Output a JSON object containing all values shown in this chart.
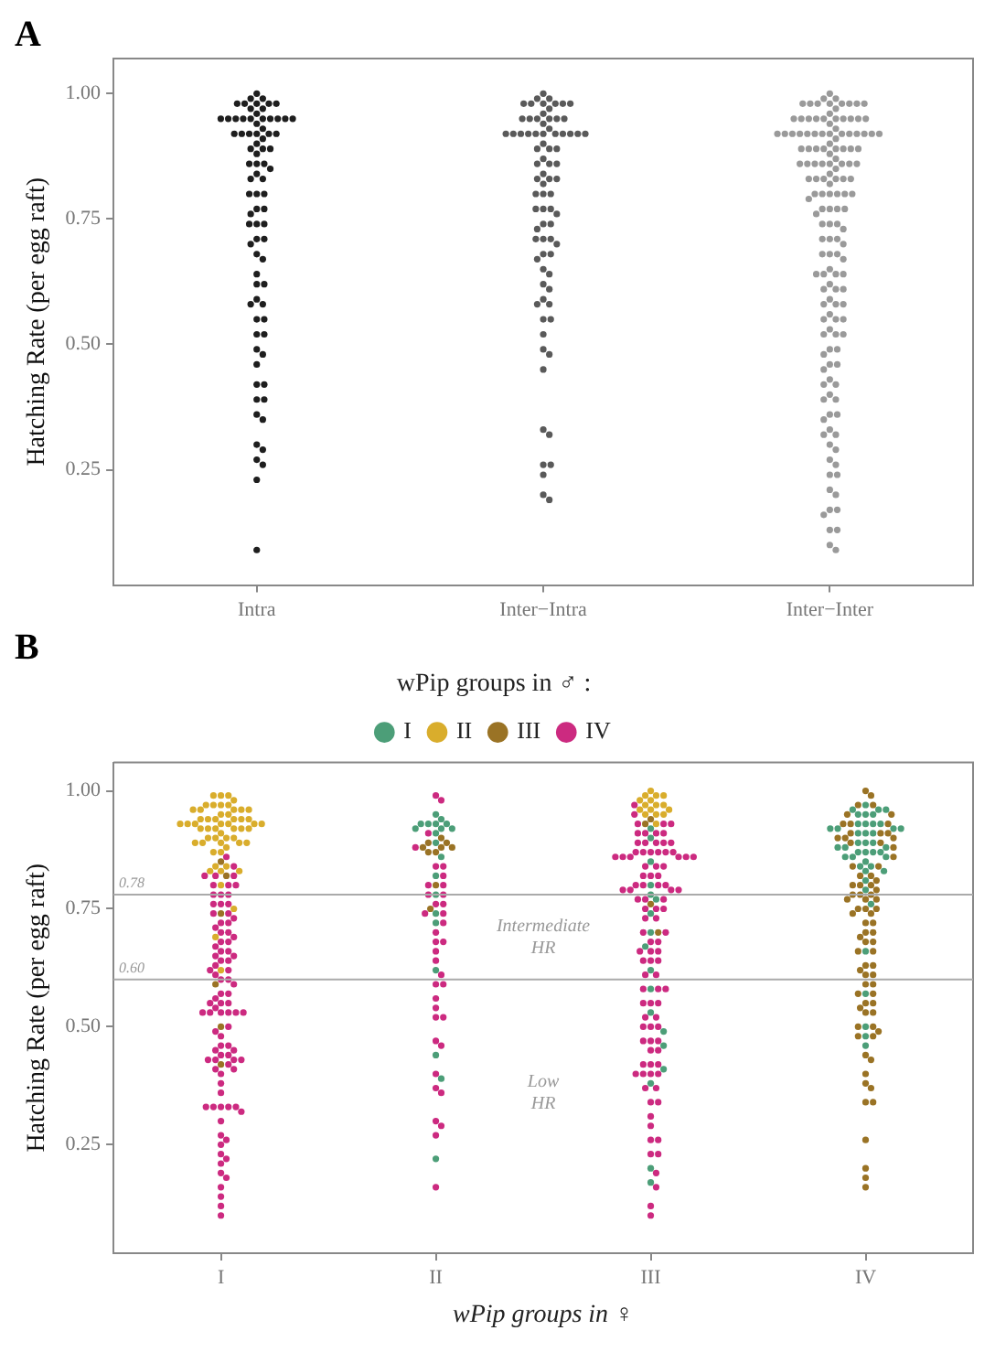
{
  "chart_data": [
    {
      "type": "scatter",
      "title": "A",
      "ylabel": "Hatching Rate (per egg raft)",
      "categories": [
        "Intra",
        "Inter−Intra",
        "Inter−Inter"
      ],
      "ylim": [
        0.02,
        1.07
      ],
      "yticks": [
        {
          "value": 0.25,
          "label": "0.25"
        },
        {
          "value": 0.5,
          "label": "0.50"
        },
        {
          "value": 0.75,
          "label": "0.75"
        },
        {
          "value": 1,
          "label": "1.00"
        }
      ],
      "marker": "circle",
      "series": [
        {
          "color": "#1e1e1e",
          "x": [
            "Intra",
            "Intra",
            "Intra",
            "Intra",
            "Intra",
            "Intra",
            "Intra",
            "Intra",
            "Intra",
            "Intra",
            "Intra",
            "Intra",
            "Intra",
            "Intra",
            "Intra",
            "Intra",
            "Intra",
            "Intra",
            "Intra",
            "Intra",
            "Intra",
            "Intra",
            "Intra",
            "Intra",
            "Intra",
            "Intra",
            "Intra",
            "Intra",
            "Intra",
            "Intra",
            "Intra",
            "Intra",
            "Intra",
            "Intra",
            "Intra",
            "Intra",
            "Intra",
            "Intra",
            "Intra",
            "Intra",
            "Intra",
            "Intra",
            "Intra",
            "Intra",
            "Intra",
            "Intra",
            "Intra",
            "Intra",
            "Intra",
            "Intra",
            "Intra",
            "Intra",
            "Intra",
            "Intra",
            "Intra",
            "Intra",
            "Intra",
            "Intra",
            "Intra",
            "Intra",
            "Intra",
            "Intra",
            "Intra",
            "Intra",
            "Intra",
            "Intra",
            "Intra",
            "Intra",
            "Intra",
            "Intra",
            "Intra",
            "Intra",
            "Intra",
            "Intra",
            "Intra",
            "Intra",
            "Intra",
            "Intra",
            "Intra",
            "Intra",
            "Intra"
          ],
          "values": [
            1.0,
            0.99,
            0.98,
            0.98,
            0.98,
            0.98,
            0.97,
            0.99,
            0.98,
            0.97,
            0.95,
            0.95,
            0.95,
            0.95,
            0.95,
            0.95,
            0.96,
            0.95,
            0.94,
            0.95,
            0.95,
            0.95,
            0.92,
            0.92,
            0.92,
            0.92,
            0.93,
            0.92,
            0.92,
            0.91,
            0.89,
            0.89,
            0.9,
            0.89,
            0.88,
            0.86,
            0.86,
            0.85,
            0.86,
            0.83,
            0.83,
            0.84,
            0.8,
            0.8,
            0.8,
            0.77,
            0.77,
            0.76,
            0.74,
            0.74,
            0.74,
            0.71,
            0.71,
            0.7,
            0.68,
            0.67,
            0.64,
            0.62,
            0.62,
            0.58,
            0.58,
            0.59,
            0.55,
            0.55,
            0.52,
            0.52,
            0.48,
            0.49,
            0.46,
            0.42,
            0.42,
            0.39,
            0.39,
            0.36,
            0.35,
            0.3,
            0.29,
            0.27,
            0.26,
            0.23,
            0.09
          ]
        },
        {
          "color": "#5a5a5a",
          "x": [
            "Inter−Intra",
            "Inter−Intra",
            "Inter−Intra",
            "Inter−Intra",
            "Inter−Intra",
            "Inter−Intra",
            "Inter−Intra",
            "Inter−Intra",
            "Inter−Intra",
            "Inter−Intra",
            "Inter−Intra",
            "Inter−Intra",
            "Inter−Intra",
            "Inter−Intra",
            "Inter−Intra",
            "Inter−Intra",
            "Inter−Intra",
            "Inter−Intra",
            "Inter−Intra",
            "Inter−Intra",
            "Inter−Intra",
            "Inter−Intra",
            "Inter−Intra",
            "Inter−Intra",
            "Inter−Intra",
            "Inter−Intra",
            "Inter−Intra",
            "Inter−Intra",
            "Inter−Intra",
            "Inter−Intra",
            "Inter−Intra",
            "Inter−Intra",
            "Inter−Intra",
            "Inter−Intra",
            "Inter−Intra",
            "Inter−Intra",
            "Inter−Intra",
            "Inter−Intra",
            "Inter−Intra",
            "Inter−Intra",
            "Inter−Intra",
            "Inter−Intra",
            "Inter−Intra",
            "Inter−Intra",
            "Inter−Intra",
            "Inter−Intra",
            "Inter−Intra",
            "Inter−Intra",
            "Inter−Intra",
            "Inter−Intra",
            "Inter−Intra",
            "Inter−Intra",
            "Inter−Intra",
            "Inter−Intra",
            "Inter−Intra",
            "Inter−Intra",
            "Inter−Intra",
            "Inter−Intra",
            "Inter−Intra",
            "Inter−Intra",
            "Inter−Intra",
            "Inter−Intra",
            "Inter−Intra",
            "Inter−Intra",
            "Inter−Intra",
            "Inter−Intra",
            "Inter−Intra",
            "Inter−Intra",
            "Inter−Intra",
            "Inter−Intra",
            "Inter−Intra",
            "Inter−Intra",
            "Inter−Intra",
            "Inter−Intra",
            "Inter−Intra",
            "Inter−Intra",
            "Inter−Intra",
            "Inter−Intra",
            "Inter−Intra",
            "Inter−Intra"
          ],
          "values": [
            1.0,
            0.99,
            0.98,
            0.98,
            0.98,
            0.98,
            0.98,
            0.99,
            0.98,
            0.97,
            0.95,
            0.95,
            0.95,
            0.95,
            0.96,
            0.95,
            0.95,
            0.94,
            0.92,
            0.92,
            0.92,
            0.92,
            0.92,
            0.92,
            0.92,
            0.92,
            0.92,
            0.93,
            0.92,
            0.92,
            0.89,
            0.89,
            0.89,
            0.9,
            0.86,
            0.86,
            0.86,
            0.87,
            0.83,
            0.83,
            0.83,
            0.84,
            0.82,
            0.8,
            0.8,
            0.8,
            0.77,
            0.77,
            0.77,
            0.76,
            0.74,
            0.74,
            0.73,
            0.71,
            0.71,
            0.71,
            0.7,
            0.68,
            0.68,
            0.67,
            0.65,
            0.64,
            0.61,
            0.62,
            0.59,
            0.58,
            0.58,
            0.55,
            0.55,
            0.52,
            0.48,
            0.49,
            0.45,
            0.33,
            0.32,
            0.26,
            0.26,
            0.24,
            0.2,
            0.19
          ]
        },
        {
          "color": "#9a9a9a",
          "x": [
            "Inter−Inter",
            "Inter−Inter",
            "Inter−Inter",
            "Inter−Inter",
            "Inter−Inter",
            "Inter−Inter",
            "Inter−Inter",
            "Inter−Inter",
            "Inter−Inter",
            "Inter−Inter",
            "Inter−Inter",
            "Inter−Inter",
            "Inter−Inter",
            "Inter−Inter",
            "Inter−Inter",
            "Inter−Inter",
            "Inter−Inter",
            "Inter−Inter",
            "Inter−Inter",
            "Inter−Inter",
            "Inter−Inter",
            "Inter−Inter",
            "Inter−Inter",
            "Inter−Inter",
            "Inter−Inter",
            "Inter−Inter",
            "Inter−Inter",
            "Inter−Inter",
            "Inter−Inter",
            "Inter−Inter",
            "Inter−Inter",
            "Inter−Inter",
            "Inter−Inter",
            "Inter−Inter",
            "Inter−Inter",
            "Inter−Inter",
            "Inter−Inter",
            "Inter−Inter",
            "Inter−Inter",
            "Inter−Inter",
            "Inter−Inter",
            "Inter−Inter",
            "Inter−Inter",
            "Inter−Inter",
            "Inter−Inter",
            "Inter−Inter",
            "Inter−Inter",
            "Inter−Inter",
            "Inter−Inter",
            "Inter−Inter",
            "Inter−Inter",
            "Inter−Inter",
            "Inter−Inter",
            "Inter−Inter",
            "Inter−Inter",
            "Inter−Inter",
            "Inter−Inter",
            "Inter−Inter",
            "Inter−Inter",
            "Inter−Inter",
            "Inter−Inter",
            "Inter−Inter",
            "Inter−Inter",
            "Inter−Inter",
            "Inter−Inter",
            "Inter−Inter",
            "Inter−Inter",
            "Inter−Inter",
            "Inter−Inter",
            "Inter−Inter",
            "Inter−Inter",
            "Inter−Inter",
            "Inter−Inter",
            "Inter−Inter",
            "Inter−Inter",
            "Inter−Inter",
            "Inter−Inter",
            "Inter−Inter",
            "Inter−Inter",
            "Inter−Inter",
            "Inter−Inter",
            "Inter−Inter",
            "Inter−Inter",
            "Inter−Inter",
            "Inter−Inter",
            "Inter−Inter",
            "Inter−Inter",
            "Inter−Inter",
            "Inter−Inter",
            "Inter−Inter",
            "Inter−Inter",
            "Inter−Inter",
            "Inter−Inter",
            "Inter−Inter",
            "Inter−Inter",
            "Inter−Inter",
            "Inter−Inter",
            "Inter−Inter",
            "Inter−Inter",
            "Inter−Inter",
            "Inter−Inter",
            "Inter−Inter",
            "Inter−Inter",
            "Inter−Inter",
            "Inter−Inter",
            "Inter−Inter",
            "Inter−Inter",
            "Inter−Inter",
            "Inter−Inter",
            "Inter−Inter",
            "Inter−Inter",
            "Inter−Inter",
            "Inter−Inter",
            "Inter−Inter",
            "Inter−Inter",
            "Inter−Inter",
            "Inter−Inter",
            "Inter−Inter",
            "Inter−Inter",
            "Inter−Inter",
            "Inter−Inter",
            "Inter−Inter",
            "Inter−Inter",
            "Inter−Inter",
            "Inter−Inter",
            "Inter−Inter",
            "Inter−Inter",
            "Inter−Inter",
            "Inter−Inter",
            "Inter−Inter",
            "Inter−Inter",
            "Inter−Inter",
            "Inter−Inter",
            "Inter−Inter",
            "Inter−Inter",
            "Inter−Inter",
            "Inter−Inter",
            "Inter−Inter",
            "Inter−Inter",
            "Inter−Inter",
            "Inter−Inter",
            "Inter−Inter",
            "Inter−Inter",
            "Inter−Inter",
            "Inter−Inter",
            "Inter−Inter"
          ],
          "values": [
            1.0,
            0.99,
            0.98,
            0.98,
            0.98,
            0.98,
            0.98,
            0.98,
            0.99,
            0.98,
            0.98,
            0.97,
            0.95,
            0.95,
            0.95,
            0.95,
            0.95,
            0.95,
            0.95,
            0.95,
            0.95,
            0.95,
            0.96,
            0.94,
            0.92,
            0.92,
            0.92,
            0.92,
            0.92,
            0.92,
            0.92,
            0.92,
            0.92,
            0.92,
            0.92,
            0.92,
            0.93,
            0.91,
            0.92,
            0.92,
            0.89,
            0.89,
            0.89,
            0.89,
            0.89,
            0.89,
            0.89,
            0.9,
            0.88,
            0.89,
            0.86,
            0.86,
            0.86,
            0.86,
            0.86,
            0.86,
            0.86,
            0.87,
            0.85,
            0.86,
            0.83,
            0.83,
            0.83,
            0.83,
            0.83,
            0.83,
            0.84,
            0.82,
            0.8,
            0.8,
            0.8,
            0.8,
            0.8,
            0.8,
            0.79,
            0.77,
            0.77,
            0.77,
            0.77,
            0.76,
            0.74,
            0.74,
            0.74,
            0.73,
            0.71,
            0.71,
            0.71,
            0.7,
            0.68,
            0.68,
            0.68,
            0.67,
            0.64,
            0.64,
            0.64,
            0.65,
            0.64,
            0.61,
            0.61,
            0.61,
            0.62,
            0.58,
            0.58,
            0.58,
            0.59,
            0.55,
            0.55,
            0.55,
            0.56,
            0.52,
            0.52,
            0.52,
            0.53,
            0.49,
            0.49,
            0.48,
            0.46,
            0.46,
            0.45,
            0.43,
            0.42,
            0.42,
            0.39,
            0.39,
            0.4,
            0.36,
            0.36,
            0.35,
            0.32,
            0.33,
            0.32,
            0.3,
            0.29,
            0.27,
            0.26,
            0.24,
            0.24,
            0.21,
            0.2,
            0.17,
            0.17,
            0.16,
            0.13,
            0.13,
            0.1,
            0.09
          ]
        }
      ]
    },
    {
      "type": "scatter",
      "title": "B",
      "ylabel": "Hatching Rate (per egg raft)",
      "xlabel": "wPip groups in ♀",
      "legend_title": "wPip groups in ♂ :",
      "legend": "top",
      "categories": [
        "I",
        "II",
        "III",
        "IV"
      ],
      "ylim": [
        0.02,
        1.06
      ],
      "yticks": [
        {
          "value": 0.25,
          "label": "0.25"
        },
        {
          "value": 0.5,
          "label": "0.50"
        },
        {
          "value": 0.75,
          "label": "0.75"
        },
        {
          "value": 1,
          "label": "1.00"
        }
      ],
      "marker": "circle",
      "ref_lines": [
        {
          "axis": "y",
          "value": 0.78,
          "label": "0.78",
          "color": "#aaaaaa"
        },
        {
          "axis": "y",
          "value": 0.6,
          "label": "0.60",
          "color": "#aaaaaa"
        }
      ],
      "annotations": [
        "Intermediate HR",
        "Low HR"
      ],
      "series": [
        {
          "name": "I",
          "color": "#4c9e78",
          "x": [
            "II",
            "II",
            "II",
            "II",
            "II",
            "II",
            "II",
            "II",
            "II",
            "II",
            "II",
            "II",
            "II",
            "II",
            "II",
            "II",
            "II",
            "II",
            "II",
            "II",
            "III",
            "III",
            "III",
            "III",
            "III",
            "III",
            "III",
            "III",
            "III",
            "III",
            "III",
            "III",
            "III",
            "III",
            "III",
            "III",
            "III",
            "III",
            "IV",
            "IV",
            "IV",
            "IV",
            "IV",
            "IV",
            "IV",
            "IV",
            "IV",
            "IV",
            "IV",
            "IV",
            "IV",
            "IV",
            "IV",
            "IV",
            "IV",
            "IV",
            "IV",
            "IV",
            "IV",
            "IV",
            "IV",
            "IV",
            "IV",
            "IV",
            "IV",
            "IV",
            "IV",
            "IV",
            "IV",
            "IV",
            "IV",
            "IV",
            "IV",
            "IV",
            "IV",
            "IV",
            "IV",
            "IV",
            "IV",
            "IV",
            "IV",
            "IV"
          ],
          "values": [
            0.95,
            0.94,
            0.93,
            0.93,
            0.93,
            0.93,
            0.92,
            0.92,
            0.91,
            0.89,
            0.86,
            0.82,
            0.78,
            0.74,
            0.72,
            0.62,
            0.44,
            0.39,
            0.22,
            0.92,
            0.92,
            0.9,
            0.85,
            0.8,
            0.78,
            0.77,
            0.74,
            0.7,
            0.67,
            0.62,
            0.58,
            0.53,
            0.49,
            0.46,
            0.41,
            0.38,
            0.2,
            0.17,
            0.97,
            0.96,
            0.96,
            0.96,
            0.95,
            0.95,
            0.95,
            0.93,
            0.93,
            0.93,
            0.93,
            0.92,
            0.92,
            0.92,
            0.92,
            0.91,
            0.91,
            0.91,
            0.89,
            0.89,
            0.89,
            0.88,
            0.88,
            0.88,
            0.87,
            0.87,
            0.87,
            0.87,
            0.86,
            0.86,
            0.86,
            0.85,
            0.84,
            0.84,
            0.83,
            0.83,
            0.81,
            0.79,
            0.76,
            0.66,
            0.57,
            0.5,
            0.48,
            0.46
          ]
        },
        {
          "name": "II",
          "color": "#d9ad2c",
          "x": [
            "I",
            "I",
            "I",
            "I",
            "I",
            "I",
            "I",
            "I",
            "I",
            "I",
            "I",
            "I",
            "I",
            "I",
            "I",
            "I",
            "I",
            "I",
            "I",
            "I",
            "I",
            "I",
            "I",
            "I",
            "I",
            "I",
            "I",
            "I",
            "I",
            "I",
            "I",
            "I",
            "I",
            "I",
            "I",
            "I",
            "I",
            "I",
            "I",
            "I",
            "I",
            "I",
            "I",
            "I",
            "I",
            "I",
            "I",
            "I",
            "I",
            "I",
            "I",
            "I",
            "I",
            "I",
            "I",
            "I",
            "III",
            "III",
            "III",
            "III",
            "III",
            "III",
            "III",
            "III",
            "III",
            "III",
            "III",
            "III",
            "III",
            "III",
            "III",
            "III"
          ],
          "values": [
            0.99,
            0.99,
            0.98,
            0.99,
            0.97,
            0.97,
            0.97,
            0.96,
            0.97,
            0.96,
            0.96,
            0.96,
            0.96,
            0.95,
            0.95,
            0.94,
            0.94,
            0.94,
            0.94,
            0.94,
            0.94,
            0.93,
            0.93,
            0.93,
            0.93,
            0.93,
            0.93,
            0.93,
            0.92,
            0.92,
            0.92,
            0.92,
            0.92,
            0.91,
            0.92,
            0.9,
            0.9,
            0.9,
            0.9,
            0.89,
            0.89,
            0.89,
            0.89,
            0.89,
            0.88,
            0.87,
            0.87,
            0.84,
            0.84,
            0.83,
            0.83,
            0.83,
            0.8,
            0.75,
            0.69,
            0.62,
            1.0,
            0.99,
            0.99,
            0.99,
            0.98,
            0.98,
            0.97,
            0.97,
            0.97,
            0.96,
            0.96,
            0.96,
            0.95,
            0.95,
            0.95,
            0.93
          ]
        },
        {
          "name": "III",
          "color": "#9a7325",
          "x": [
            "I",
            "I",
            "I",
            "I",
            "I",
            "I",
            "II",
            "II",
            "II",
            "II",
            "II",
            "II",
            "II",
            "II",
            "II",
            "II",
            "III",
            "III",
            "III",
            "III",
            "IV",
            "IV",
            "IV",
            "IV",
            "IV",
            "IV",
            "IV",
            "IV",
            "IV",
            "IV",
            "IV",
            "IV",
            "IV",
            "IV",
            "IV",
            "IV",
            "IV",
            "IV",
            "IV",
            "IV",
            "IV",
            "IV",
            "IV",
            "IV",
            "IV",
            "IV",
            "IV",
            "IV",
            "IV",
            "IV",
            "IV",
            "IV",
            "IV",
            "IV",
            "IV",
            "IV",
            "IV",
            "IV",
            "IV",
            "IV",
            "IV",
            "IV",
            "IV",
            "IV",
            "IV",
            "IV",
            "IV",
            "IV",
            "IV",
            "IV",
            "IV",
            "IV",
            "IV",
            "IV",
            "IV",
            "IV",
            "IV",
            "IV",
            "IV",
            "IV",
            "IV",
            "IV",
            "IV",
            "IV",
            "IV",
            "IV",
            "IV",
            "IV",
            "IV",
            "IV",
            "IV",
            "IV",
            "IV",
            "IV",
            "IV",
            "IV",
            "IV",
            "IV"
          ],
          "values": [
            0.85,
            0.82,
            0.74,
            0.59,
            0.5,
            0.42,
            0.9,
            0.89,
            0.89,
            0.88,
            0.88,
            0.88,
            0.87,
            0.87,
            0.8,
            0.75,
            0.94,
            0.93,
            0.76,
            0.7,
            1.0,
            0.99,
            0.97,
            0.97,
            0.95,
            0.95,
            0.93,
            0.93,
            0.93,
            0.91,
            0.91,
            0.91,
            0.9,
            0.9,
            0.9,
            0.89,
            0.89,
            0.88,
            0.86,
            0.84,
            0.84,
            0.82,
            0.82,
            0.81,
            0.8,
            0.8,
            0.8,
            0.79,
            0.78,
            0.78,
            0.78,
            0.77,
            0.77,
            0.77,
            0.75,
            0.75,
            0.75,
            0.74,
            0.74,
            0.72,
            0.72,
            0.7,
            0.7,
            0.69,
            0.68,
            0.68,
            0.66,
            0.66,
            0.63,
            0.63,
            0.62,
            0.61,
            0.61,
            0.59,
            0.59,
            0.57,
            0.57,
            0.55,
            0.55,
            0.54,
            0.53,
            0.53,
            0.5,
            0.5,
            0.49,
            0.48,
            0.48,
            0.44,
            0.43,
            0.4,
            0.38,
            0.37,
            0.34,
            0.34,
            0.26,
            0.2,
            0.18,
            0.16
          ]
        },
        {
          "name": "IV",
          "color": "#cc2a80",
          "x": [
            "I",
            "I",
            "I",
            "I",
            "I",
            "I",
            "I",
            "I",
            "I",
            "I",
            "I",
            "I",
            "I",
            "I",
            "I",
            "I",
            "I",
            "I",
            "I",
            "I",
            "I",
            "I",
            "I",
            "I",
            "I",
            "I",
            "I",
            "I",
            "I",
            "I",
            "I",
            "I",
            "I",
            "I",
            "I",
            "I",
            "I",
            "I",
            "I",
            "I",
            "I",
            "I",
            "I",
            "I",
            "I",
            "I",
            "I",
            "I",
            "I",
            "I",
            "I",
            "I",
            "I",
            "I",
            "I",
            "I",
            "I",
            "I",
            "I",
            "I",
            "I",
            "I",
            "I",
            "I",
            "I",
            "I",
            "I",
            "I",
            "I",
            "I",
            "I",
            "I",
            "I",
            "I",
            "I",
            "I",
            "I",
            "I",
            "I",
            "I",
            "I",
            "I",
            "I",
            "I",
            "I",
            "I",
            "I",
            "I",
            "I",
            "I",
            "II",
            "II",
            "II",
            "II",
            "II",
            "II",
            "II",
            "II",
            "II",
            "II",
            "II",
            "II",
            "II",
            "II",
            "II",
            "II",
            "II",
            "II",
            "II",
            "II",
            "II",
            "II",
            "II",
            "II",
            "II",
            "II",
            "II",
            "II",
            "II",
            "II",
            "II",
            "II",
            "II",
            "II",
            "II",
            "II",
            "II",
            "III",
            "III",
            "III",
            "III",
            "III",
            "III",
            "III",
            "III",
            "III",
            "III",
            "III",
            "III",
            "III",
            "III",
            "III",
            "III",
            "III",
            "III",
            "III",
            "III",
            "III",
            "III",
            "III",
            "III",
            "III",
            "III",
            "III",
            "III",
            "III",
            "III",
            "III",
            "III",
            "III",
            "III",
            "III",
            "III",
            "III",
            "III",
            "III",
            "III",
            "III",
            "III",
            "III",
            "III",
            "III",
            "III",
            "III",
            "III",
            "III",
            "III",
            "III",
            "III",
            "III",
            "III",
            "III",
            "III",
            "III",
            "III",
            "III",
            "III",
            "III",
            "III",
            "III",
            "III",
            "III",
            "III",
            "III",
            "III",
            "III",
            "III",
            "III",
            "III",
            "III",
            "III",
            "III",
            "III",
            "III",
            "III",
            "III",
            "III",
            "III",
            "III",
            "III",
            "III",
            "III",
            "III",
            "III",
            "III",
            "III",
            "III",
            "III",
            "III",
            "III",
            "III",
            "III",
            "III",
            "III"
          ],
          "values": [
            0.86,
            0.84,
            0.82,
            0.82,
            0.82,
            0.8,
            0.8,
            0.8,
            0.78,
            0.78,
            0.78,
            0.76,
            0.76,
            0.76,
            0.74,
            0.74,
            0.73,
            0.72,
            0.72,
            0.71,
            0.7,
            0.7,
            0.69,
            0.68,
            0.68,
            0.67,
            0.66,
            0.66,
            0.65,
            0.65,
            0.64,
            0.64,
            0.63,
            0.62,
            0.62,
            0.61,
            0.6,
            0.6,
            0.59,
            0.57,
            0.57,
            0.56,
            0.55,
            0.55,
            0.55,
            0.54,
            0.53,
            0.53,
            0.53,
            0.53,
            0.53,
            0.53,
            0.5,
            0.49,
            0.48,
            0.46,
            0.46,
            0.45,
            0.45,
            0.44,
            0.44,
            0.43,
            0.43,
            0.43,
            0.43,
            0.42,
            0.41,
            0.41,
            0.4,
            0.38,
            0.36,
            0.33,
            0.33,
            0.33,
            0.33,
            0.33,
            0.32,
            0.3,
            0.27,
            0.26,
            0.25,
            0.23,
            0.22,
            0.21,
            0.19,
            0.18,
            0.16,
            0.14,
            0.12,
            0.1,
            0.99,
            0.98,
            0.91,
            0.88,
            0.84,
            0.84,
            0.82,
            0.8,
            0.8,
            0.78,
            0.78,
            0.76,
            0.76,
            0.74,
            0.74,
            0.72,
            0.7,
            0.68,
            0.68,
            0.66,
            0.64,
            0.61,
            0.59,
            0.59,
            0.56,
            0.54,
            0.52,
            0.52,
            0.47,
            0.46,
            0.4,
            0.37,
            0.36,
            0.3,
            0.29,
            0.27,
            0.16,
            0.97,
            0.95,
            0.93,
            0.93,
            0.93,
            0.91,
            0.91,
            0.91,
            0.91,
            0.89,
            0.89,
            0.89,
            0.89,
            0.89,
            0.87,
            0.87,
            0.87,
            0.87,
            0.87,
            0.87,
            0.86,
            0.86,
            0.86,
            0.86,
            0.86,
            0.86,
            0.84,
            0.84,
            0.84,
            0.82,
            0.82,
            0.82,
            0.8,
            0.8,
            0.8,
            0.8,
            0.79,
            0.79,
            0.79,
            0.79,
            0.77,
            0.77,
            0.77,
            0.75,
            0.75,
            0.75,
            0.73,
            0.73,
            0.7,
            0.7,
            0.68,
            0.68,
            0.66,
            0.66,
            0.66,
            0.64,
            0.64,
            0.64,
            0.61,
            0.61,
            0.58,
            0.58,
            0.58,
            0.55,
            0.55,
            0.55,
            0.52,
            0.52,
            0.5,
            0.5,
            0.5,
            0.47,
            0.47,
            0.47,
            0.45,
            0.45,
            0.42,
            0.42,
            0.42,
            0.4,
            0.4,
            0.4,
            0.4,
            0.37,
            0.37,
            0.34,
            0.34,
            0.31,
            0.29,
            0.26,
            0.26,
            0.23,
            0.23,
            0.19,
            0.16,
            0.12,
            0.1
          ]
        }
      ]
    }
  ]
}
